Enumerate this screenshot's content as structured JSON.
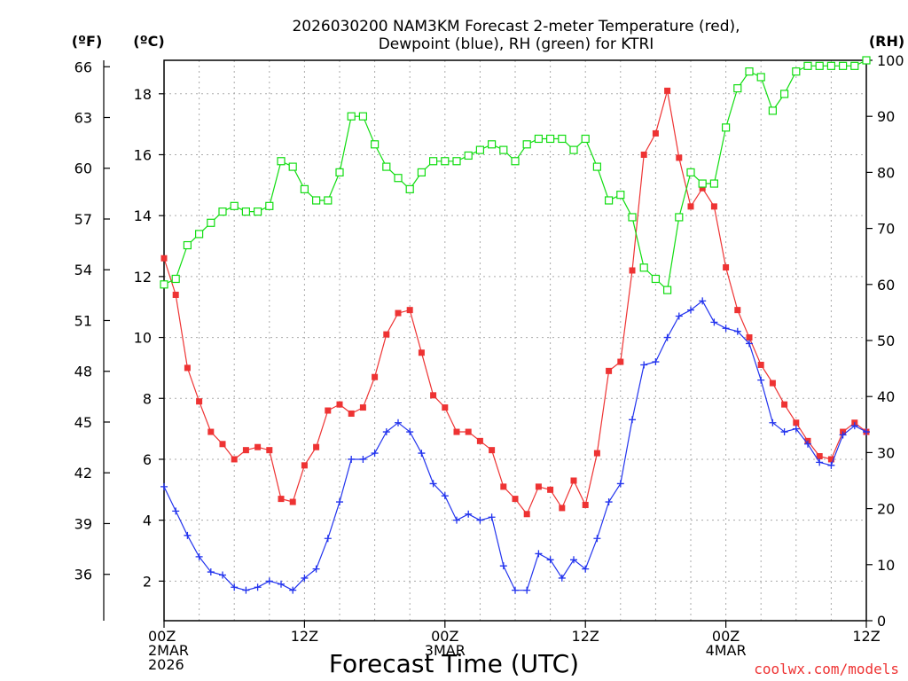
{
  "chart_data": {
    "type": "line",
    "title_lines": [
      "2026030200 NAM3KM Forecast 2-meter Temperature (red),",
      "Dewpoint (blue), RH (green) for KTRI"
    ],
    "xlabel": "Forecast Time (UTC)",
    "credit": "coolwx.com/models",
    "units": {
      "fahrenheit": "(ºF)",
      "celsius": "(ºC)",
      "rh": "(RH)"
    },
    "x_range_hours": [
      0,
      60
    ],
    "x_ticks": [
      {
        "hour": 0,
        "lines": [
          "00Z",
          "2MAR",
          "2026"
        ]
      },
      {
        "hour": 12,
        "lines": [
          "12Z"
        ]
      },
      {
        "hour": 24,
        "lines": [
          "00Z",
          "3MAR"
        ]
      },
      {
        "hour": 36,
        "lines": [
          "12Z"
        ]
      },
      {
        "hour": 48,
        "lines": [
          "00Z",
          "4MAR"
        ]
      },
      {
        "hour": 60,
        "lines": [
          "12Z"
        ]
      }
    ],
    "celsius_axis": {
      "range": [
        0.7,
        19.1
      ],
      "ticks": [
        2,
        4,
        6,
        8,
        10,
        12,
        14,
        16,
        18
      ]
    },
    "fahrenheit_ticks": [
      36,
      39,
      42,
      45,
      48,
      51,
      54,
      57,
      60,
      63,
      66
    ],
    "rh_axis": {
      "range": [
        0,
        100
      ],
      "ticks": [
        0,
        10,
        20,
        30,
        40,
        50,
        60,
        70,
        80,
        90,
        100
      ]
    },
    "x_hours": [
      0,
      1,
      2,
      3,
      4,
      5,
      6,
      7,
      8,
      9,
      10,
      11,
      12,
      13,
      14,
      15,
      16,
      17,
      18,
      19,
      20,
      21,
      22,
      23,
      24,
      25,
      26,
      27,
      28,
      29,
      30,
      31,
      32,
      33,
      34,
      35,
      36,
      37,
      38,
      39,
      40,
      41,
      42,
      43,
      44,
      45,
      46,
      47,
      48,
      49,
      50,
      51,
      52,
      53,
      54,
      55,
      56,
      57,
      58,
      59,
      60
    ],
    "series": [
      {
        "name": "2-meter Temperature",
        "unit": "C",
        "color": "#ee3333",
        "marker": "filled-square",
        "values": [
          12.6,
          11.4,
          9.0,
          7.9,
          6.9,
          6.5,
          6.0,
          6.3,
          6.4,
          6.3,
          4.7,
          4.6,
          5.8,
          6.4,
          7.6,
          7.8,
          7.5,
          7.7,
          8.7,
          10.1,
          10.8,
          10.9,
          9.5,
          8.1,
          7.7,
          6.9,
          6.9,
          6.6,
          6.3,
          5.1,
          4.7,
          4.2,
          5.1,
          5.0,
          4.4,
          5.3,
          4.5,
          6.2,
          8.9,
          9.2,
          12.2,
          16.0,
          16.7,
          18.1,
          15.9,
          14.3,
          14.9,
          14.3,
          12.3,
          10.9,
          10.0,
          9.1,
          8.5,
          7.8,
          7.2,
          6.6,
          6.1,
          6.0,
          6.9,
          7.2,
          6.9
        ]
      },
      {
        "name": "Dewpoint",
        "unit": "C",
        "color": "#2233ee",
        "marker": "plus",
        "values": [
          5.1,
          4.3,
          3.5,
          2.8,
          2.3,
          2.2,
          1.8,
          1.7,
          1.8,
          2.0,
          1.9,
          1.7,
          2.1,
          2.4,
          3.4,
          4.6,
          6.0,
          6.0,
          6.2,
          6.9,
          7.2,
          6.9,
          6.2,
          5.2,
          4.8,
          4.0,
          4.2,
          4.0,
          4.1,
          2.5,
          1.7,
          1.7,
          2.9,
          2.7,
          2.1,
          2.7,
          2.4,
          3.4,
          4.6,
          5.2,
          7.3,
          9.1,
          9.2,
          10.0,
          10.7,
          10.9,
          11.2,
          10.5,
          10.3,
          10.2,
          9.8,
          8.6,
          7.2,
          6.9,
          7.0,
          6.5,
          5.9,
          5.8,
          6.8,
          7.1,
          6.9
        ]
      },
      {
        "name": "RH",
        "unit": "%",
        "color": "#11dd11",
        "marker": "open-square",
        "values": [
          60,
          61,
          67,
          69,
          71,
          73,
          74,
          73,
          73,
          74,
          82,
          81,
          77,
          75,
          75,
          80,
          90,
          90,
          85,
          81,
          79,
          77,
          80,
          82,
          82,
          82,
          83,
          84,
          85,
          84,
          82,
          85,
          86,
          86,
          86,
          84,
          86,
          81,
          75,
          76,
          72,
          63,
          61,
          59,
          72,
          80,
          78,
          78,
          88,
          95,
          98,
          97,
          91,
          94,
          98,
          99,
          99,
          99,
          99,
          99,
          100
        ]
      }
    ]
  }
}
